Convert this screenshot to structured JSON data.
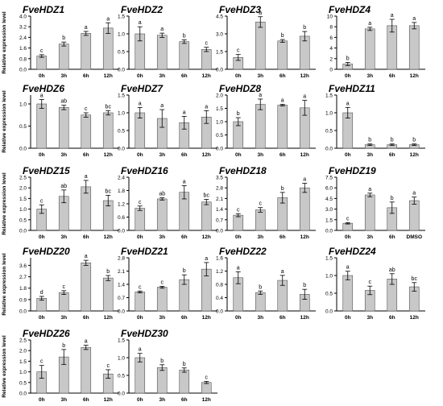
{
  "colors": {
    "bar_fill": "#c8c8c8",
    "bar_stroke": "#555555",
    "axis": "#000000"
  },
  "shared_ylabel": "Relative expression level",
  "chart_data": [
    {
      "type": "bar",
      "title": "FveHDZ1",
      "categories": [
        "0h",
        "3h",
        "6h",
        "12h"
      ],
      "values": [
        1.0,
        1.9,
        2.7,
        3.1
      ],
      "errors": [
        0.1,
        0.15,
        0.15,
        0.4
      ],
      "letters": [
        "c",
        "b",
        "a",
        "a"
      ],
      "yticks": [
        "0.0",
        "0.8",
        "1.6",
        "2.4",
        "3.2",
        "4.0"
      ],
      "ylim": [
        0,
        4.0
      ],
      "ylabel": "Relative expression level"
    },
    {
      "type": "bar",
      "title": "FveHDZ2",
      "categories": [
        "0h",
        "3h",
        "6h",
        "12h"
      ],
      "values": [
        1.0,
        0.96,
        0.78,
        0.56
      ],
      "errors": [
        0.2,
        0.06,
        0.05,
        0.06
      ],
      "letters": [
        "a",
        "a",
        "b",
        "c"
      ],
      "yticks": [
        "0.0",
        "0.5",
        "1.0",
        "1.5"
      ],
      "ylim": [
        0,
        1.5
      ],
      "ylabel": ""
    },
    {
      "type": "bar",
      "title": "FveHDZ3",
      "categories": [
        "0h",
        "3h",
        "6h",
        "12h"
      ],
      "values": [
        1.0,
        4.0,
        2.4,
        2.8
      ],
      "errors": [
        0.25,
        0.45,
        0.12,
        0.4
      ],
      "letters": [
        "c",
        "a",
        "b",
        "b"
      ],
      "yticks": [
        "0.0",
        "1.5",
        "3.0",
        "4.5"
      ],
      "ylim": [
        0,
        4.5
      ],
      "ylabel": ""
    },
    {
      "type": "bar",
      "title": "FveHDZ4",
      "categories": [
        "0h",
        "3h",
        "6h",
        "12h"
      ],
      "values": [
        1.0,
        7.6,
        8.2,
        8.2
      ],
      "errors": [
        0.3,
        0.3,
        1.2,
        0.6
      ],
      "letters": [
        "b",
        "a",
        "a",
        "a"
      ],
      "yticks": [
        "0",
        "2",
        "4",
        "6",
        "8",
        "10"
      ],
      "ylim": [
        0,
        10
      ],
      "ylabel": ""
    },
    {
      "type": "bar",
      "title": "FveHDZ6",
      "categories": [
        "0h",
        "3h",
        "6h",
        "12h"
      ],
      "values": [
        1.0,
        0.92,
        0.75,
        0.8
      ],
      "errors": [
        0.1,
        0.05,
        0.05,
        0.05
      ],
      "letters": [
        "a",
        "ab",
        "c",
        "bc"
      ],
      "yticks": [
        "0.0",
        "0.5",
        "1.0"
      ],
      "ylim": [
        0,
        1.2
      ],
      "ylabel": "Relative expression level"
    },
    {
      "type": "bar",
      "title": "FveHDZ7",
      "categories": [
        "0h",
        "3h",
        "6h",
        "12h"
      ],
      "values": [
        1.0,
        0.84,
        0.72,
        0.88
      ],
      "errors": [
        0.15,
        0.25,
        0.18,
        0.18
      ],
      "letters": [
        "a",
        "a",
        "a",
        "a"
      ],
      "yticks": [
        "0.0",
        "0.5",
        "1.0",
        "1.5"
      ],
      "ylim": [
        0,
        1.5
      ],
      "ylabel": ""
    },
    {
      "type": "bar",
      "title": "FveHDZ8",
      "categories": [
        "0h",
        "3h",
        "6h",
        "12h"
      ],
      "values": [
        1.0,
        1.65,
        1.62,
        1.52
      ],
      "errors": [
        0.15,
        0.2,
        0.03,
        0.28
      ],
      "letters": [
        "b",
        "a",
        "a",
        "a"
      ],
      "yticks": [
        "0.0",
        "0.5",
        "1.0",
        "1.5",
        "2.0"
      ],
      "ylim": [
        0,
        2.0
      ],
      "ylabel": ""
    },
    {
      "type": "bar",
      "title": "FveHDZ11",
      "categories": [
        "0h",
        "3h",
        "6h",
        "12h"
      ],
      "values": [
        1.0,
        0.1,
        0.1,
        0.1
      ],
      "errors": [
        0.15,
        0.02,
        0.02,
        0.02
      ],
      "letters": [
        "a",
        "b",
        "b",
        "b"
      ],
      "yticks": [
        "0.0",
        "0.5",
        "1.0",
        "1.5"
      ],
      "ylim": [
        0,
        1.5
      ],
      "ylabel": ""
    },
    {
      "type": "bar",
      "title": "FveHDZ15",
      "categories": [
        "0h",
        "3h",
        "6h",
        "12h"
      ],
      "values": [
        1.0,
        1.6,
        2.05,
        1.4
      ],
      "errors": [
        0.2,
        0.3,
        0.3,
        0.25
      ],
      "letters": [
        "c",
        "ab",
        "a",
        "bc"
      ],
      "yticks": [
        "0.0",
        "0.5",
        "1.0",
        "1.5",
        "2.0",
        "2.5"
      ],
      "ylim": [
        0,
        2.5
      ],
      "ylabel": "Relative expression level"
    },
    {
      "type": "bar",
      "title": "FveHDZ16",
      "categories": [
        "0h",
        "3h",
        "6h",
        "12h"
      ],
      "values": [
        1.0,
        1.42,
        1.72,
        1.28
      ],
      "errors": [
        0.1,
        0.05,
        0.3,
        0.12
      ],
      "letters": [
        "c",
        "ab",
        "a",
        "bc"
      ],
      "yticks": [
        "0.0",
        "0.6",
        "1.2",
        "1.8",
        "2.4"
      ],
      "ylim": [
        0,
        2.4
      ],
      "ylabel": ""
    },
    {
      "type": "bar",
      "title": "FveHDZ18",
      "categories": [
        "0h",
        "3h",
        "6h",
        "12h"
      ],
      "values": [
        1.0,
        1.35,
        2.15,
        2.8
      ],
      "errors": [
        0.1,
        0.15,
        0.35,
        0.3
      ],
      "letters": [
        "c",
        "c",
        "b",
        "a"
      ],
      "yticks": [
        "0.0",
        "0.7",
        "1.4",
        "2.1",
        "2.8",
        "3.5"
      ],
      "ylim": [
        0,
        3.5
      ],
      "ylabel": ""
    },
    {
      "type": "bar",
      "title": "FveHDZ19",
      "categories": [
        "0h",
        "3h",
        "6h",
        "DMSO"
      ],
      "values": [
        1.0,
        5.0,
        3.2,
        4.2
      ],
      "errors": [
        0.1,
        0.25,
        0.8,
        0.5
      ],
      "letters": [
        "c",
        "a",
        "b",
        "a"
      ],
      "yticks": [
        "0.0",
        "1.5",
        "3.0",
        "4.5",
        "6.0",
        "7.5"
      ],
      "ylim": [
        0,
        7.5
      ],
      "ylabel": ""
    },
    {
      "type": "bar",
      "title": "FveHDZ20",
      "categories": [
        "0h",
        "3h",
        "6h",
        "12h"
      ],
      "values": [
        1.0,
        1.45,
        3.8,
        2.6
      ],
      "errors": [
        0.15,
        0.15,
        0.2,
        0.2
      ],
      "letters": [
        "d",
        "c",
        "a",
        "b"
      ],
      "yticks": [
        "0.0",
        "0.9",
        "1.8",
        "2.7",
        "3.6"
      ],
      "ylim": [
        0,
        4.2
      ],
      "ylabel": "Relative expression level"
    },
    {
      "type": "bar",
      "title": "FveHDZ21",
      "categories": [
        "0h",
        "3h",
        "6h",
        "12h"
      ],
      "values": [
        1.0,
        1.25,
        1.65,
        2.2
      ],
      "errors": [
        0.05,
        0.05,
        0.25,
        0.35
      ],
      "letters": [
        "c",
        "c",
        "b",
        "a"
      ],
      "yticks": [
        "0.0",
        "0.7",
        "1.4",
        "2.1",
        "2.8"
      ],
      "ylim": [
        0,
        2.8
      ],
      "ylabel": ""
    },
    {
      "type": "bar",
      "title": "FveHDZ22",
      "categories": [
        "0h",
        "3h",
        "6h",
        "12h"
      ],
      "values": [
        1.0,
        0.55,
        0.92,
        0.5
      ],
      "errors": [
        0.18,
        0.05,
        0.15,
        0.15
      ],
      "letters": [
        "a",
        "b",
        "a",
        "b"
      ],
      "yticks": [
        "0.0",
        "0.4",
        "0.8",
        "1.2",
        "1.6"
      ],
      "ylim": [
        0,
        1.6
      ],
      "ylabel": ""
    },
    {
      "type": "bar",
      "title": "FveHDZ24",
      "categories": [
        "0h",
        "3h",
        "6h",
        "12h"
      ],
      "values": [
        1.0,
        0.58,
        0.9,
        0.68
      ],
      "errors": [
        0.12,
        0.12,
        0.15,
        0.12
      ],
      "letters": [
        "a",
        "c",
        "ab",
        "bc"
      ],
      "yticks": [
        "0.0",
        "0.5",
        "1.0",
        "1.5"
      ],
      "ylim": [
        0,
        1.5
      ],
      "ylabel": ""
    },
    {
      "type": "bar",
      "title": "FveHDZ26",
      "categories": [
        "0h",
        "3h",
        "6h",
        "12h"
      ],
      "values": [
        1.0,
        1.7,
        2.15,
        0.9
      ],
      "errors": [
        0.3,
        0.35,
        0.1,
        0.2
      ],
      "letters": [
        "c",
        "b",
        "a",
        "c"
      ],
      "yticks": [
        "0.0",
        "0.5",
        "1.0",
        "1.5",
        "2.0",
        "2.5"
      ],
      "ylim": [
        0,
        2.5
      ],
      "ylabel": "Relative expression level"
    },
    {
      "type": "bar",
      "title": "FveHDZ30",
      "categories": [
        "0h",
        "3h",
        "6h",
        "12h"
      ],
      "values": [
        1.0,
        0.72,
        0.65,
        0.3
      ],
      "errors": [
        0.12,
        0.08,
        0.06,
        0.03
      ],
      "letters": [
        "a",
        "b",
        "b",
        "c"
      ],
      "yticks": [
        "0.0",
        "0.5",
        "1.0",
        "1.5"
      ],
      "ylim": [
        0,
        1.5
      ],
      "ylabel": ""
    }
  ]
}
